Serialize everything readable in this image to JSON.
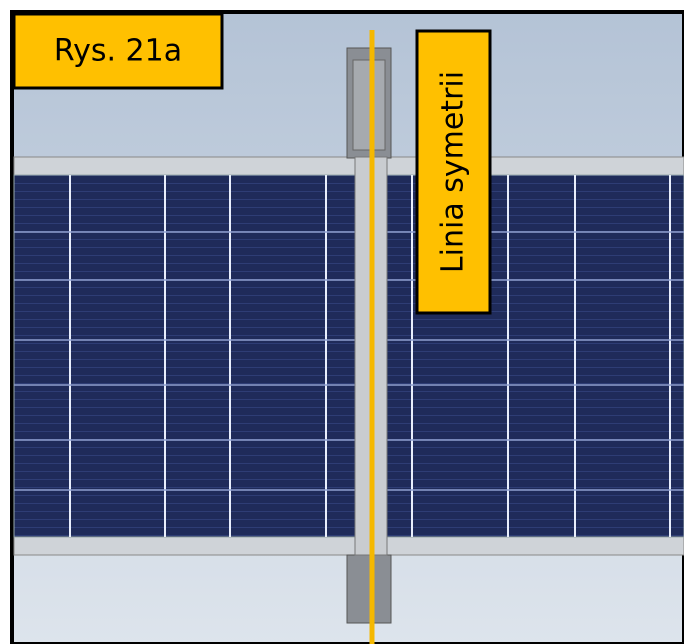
{
  "figure_label": "Rys. 21a",
  "symmetry_label": "Linia symetrii"
}
